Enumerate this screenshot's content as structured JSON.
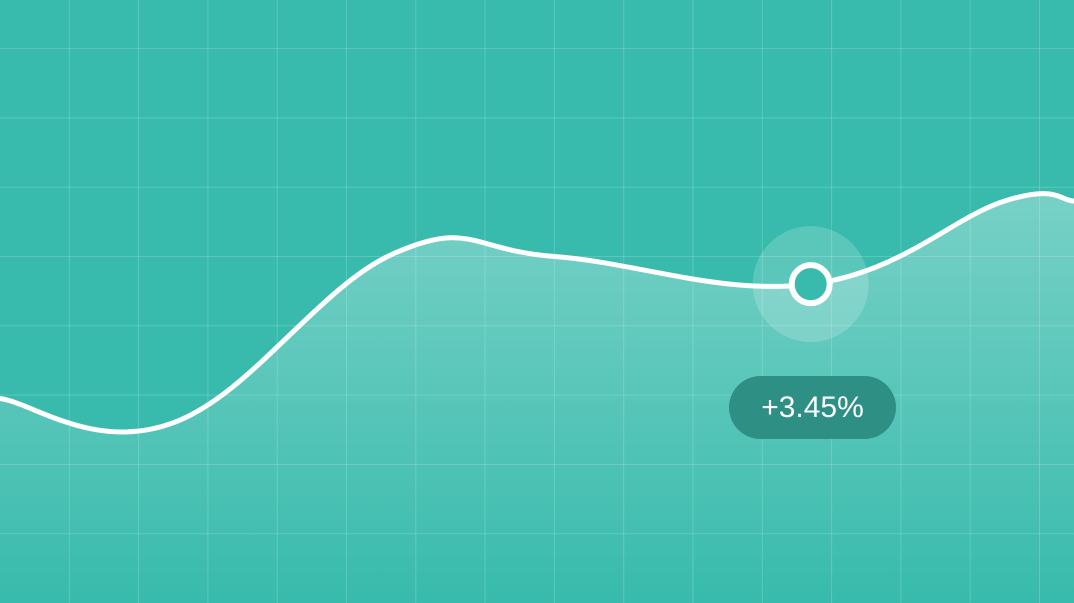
{
  "colors": {
    "background": "#38bbac",
    "grid": "#ffffff",
    "line": "#ffffff",
    "marker_fill": "#38bbac",
    "badge_bg": "#2e8f84"
  },
  "chart_data": {
    "type": "line",
    "title": "",
    "xlabel": "",
    "ylabel": "",
    "grid": true,
    "legend": "none",
    "xlim": [
      0,
      15.5
    ],
    "ylim": [
      0,
      8.7
    ],
    "series": [
      {
        "values": [
          {
            "x": 0,
            "y": 2.95
          },
          {
            "x": 2.5,
            "y": 2.6
          },
          {
            "x": 5.7,
            "y": 5.05
          },
          {
            "x": 8,
            "y": 5.0
          },
          {
            "x": 11.7,
            "y": 4.6
          },
          {
            "x": 14.5,
            "y": 5.8
          },
          {
            "x": 15.5,
            "y": 5.8
          }
        ]
      }
    ],
    "highlight": {
      "x": 11.7,
      "y": 4.6,
      "label": "+3.45%"
    }
  }
}
